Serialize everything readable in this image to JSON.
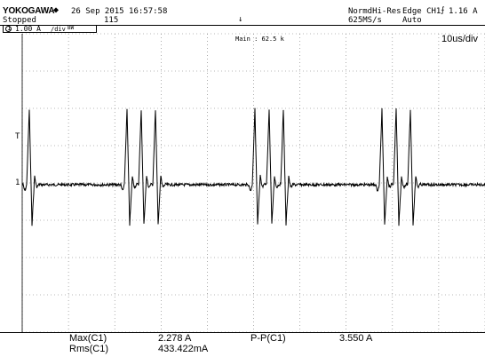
{
  "header": {
    "brand": "YOKOGAWA",
    "brand_mark": "diamond-logo",
    "date": "26 Sep 2015 16:57:58",
    "status": "Stopped",
    "count": "115",
    "center_marker": "↓",
    "acq_mode": "NormdHi-Res",
    "sample_rate": "625MS/s",
    "trigger_type": "Edge CH1",
    "trigger_slope_icon": "rising-edge-icon",
    "trigger_level": "1.16 A",
    "trigger_mode": "Auto"
  },
  "channel": {
    "number": "1",
    "scale": "1.00 A",
    "coupling": "/div",
    "bw": "BW"
  },
  "screen": {
    "main_label": "Main : 62.5 k",
    "timebase": "10us/div",
    "trigger_marker": "T",
    "ground_marker": "1"
  },
  "measurements": [
    {
      "label": "Max(C1)",
      "value": "2.278 A"
    },
    {
      "label": "Rms(C1)",
      "value": "433.422mA"
    },
    {
      "label": "P-P(C1)",
      "value": "3.550 A"
    }
  ],
  "waveform": {
    "baseline_div": 0.0,
    "period_div": 2.9,
    "first_burst_start_div": -0.0,
    "pulses_per_burst": [
      1,
      3,
      3,
      3
    ],
    "peak_amplitude_A": 2.278,
    "min_amplitude_A": -1.272
  }
}
